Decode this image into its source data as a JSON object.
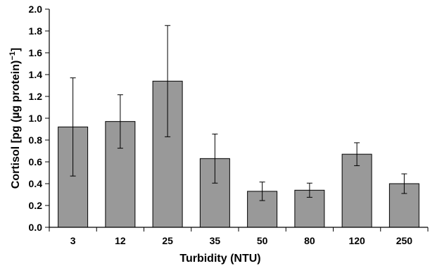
{
  "chart_data": {
    "type": "bar",
    "title": "",
    "xlabel": "Turbidity (NTU)",
    "ylabel_main": "Cortisol [pg (µg protein)",
    "ylabel_sup": "−1",
    "ylabel_close": "]",
    "categories": [
      "3",
      "12",
      "25",
      "35",
      "50",
      "80",
      "120",
      "250"
    ],
    "values": [
      0.92,
      0.97,
      1.34,
      0.63,
      0.33,
      0.34,
      0.67,
      0.4
    ],
    "errors": [
      0.45,
      0.245,
      0.51,
      0.225,
      0.085,
      0.065,
      0.105,
      0.09
    ],
    "ylim": [
      0,
      2.0
    ],
    "yticks": [
      "0.0",
      "0.2",
      "0.4",
      "0.6",
      "0.8",
      "1.0",
      "1.2",
      "1.4",
      "1.6",
      "1.8",
      "2.0"
    ],
    "grid": false,
    "bar_color": "#999999",
    "bar_edge_color": "#000000"
  }
}
